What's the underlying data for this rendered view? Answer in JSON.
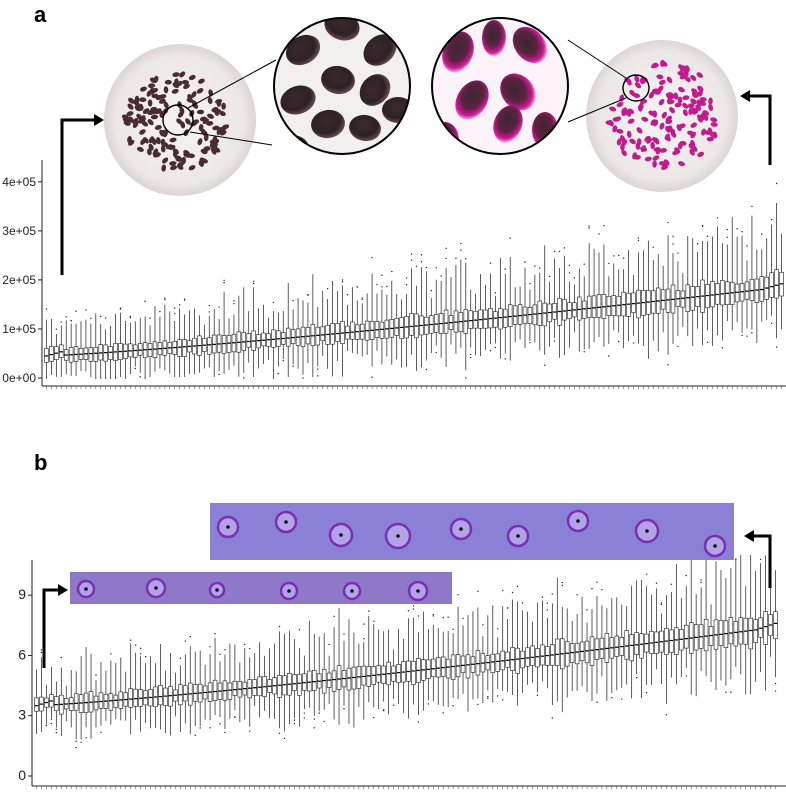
{
  "figure": {
    "panel_a_letter": "a",
    "panel_b_letter": "b"
  },
  "colors": {
    "box_stroke": "#1a1a1a",
    "seed_dark": "#4a2a33",
    "seed_magenta": "#c21b8e",
    "plate_bg": "#efeceb",
    "stain_bg": "#8878d8",
    "halo": "#7a2fb0"
  },
  "icons": {
    "arrow_left_a": "bent-arrow-up-right-icon",
    "arrow_right_a": "bent-arrow-up-left-icon",
    "arrow_left_b": "bent-arrow-up-right-icon",
    "arrow_right_b": "bent-arrow-up-left-icon"
  },
  "chart_data": [
    {
      "panel": "a",
      "type": "box",
      "title": "",
      "xlabel": "",
      "ylabel": "",
      "ylim": [
        0,
        420000
      ],
      "ytick_values": [
        0,
        100000,
        200000,
        300000,
        400000
      ],
      "ytick_labels": [
        "0e+00",
        "1e+05",
        "2e+05",
        "3e+05",
        "4e+05"
      ],
      "n_boxes": 150,
      "median_range": [
        45000,
        185000
      ],
      "sorted_by": "median ascending",
      "grid": false,
      "legend": "none"
    },
    {
      "panel": "b",
      "type": "box",
      "title": "",
      "xlabel": "",
      "ylabel": "",
      "ylim": [
        0,
        11
      ],
      "ytick_values": [
        0,
        3,
        6,
        9
      ],
      "ytick_labels": [
        "0",
        "3",
        "6",
        "9"
      ],
      "n_boxes": 150,
      "median_range": [
        3.5,
        7.4
      ],
      "sorted_by": "median ascending",
      "grid": false,
      "legend": "none"
    }
  ]
}
